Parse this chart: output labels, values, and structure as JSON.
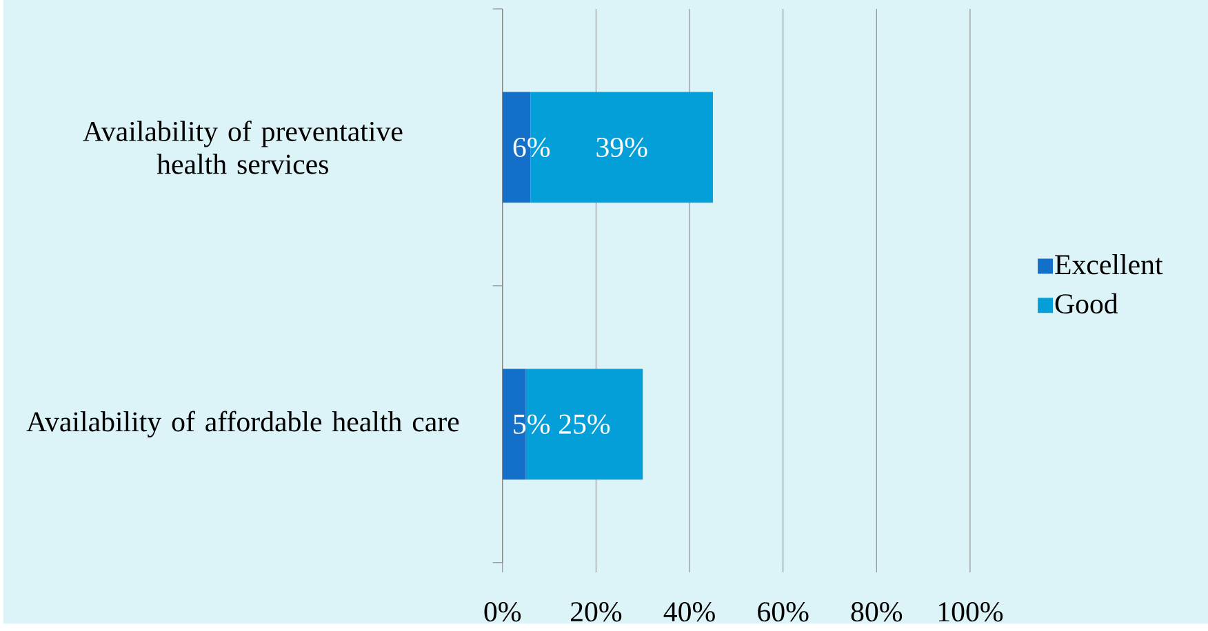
{
  "chart_data": {
    "type": "bar",
    "orientation": "horizontal",
    "stacked": true,
    "categories": [
      "Availability of preventative health services",
      "Availability of affordable health care"
    ],
    "series": [
      {
        "name": "Excellent",
        "color": "#136fc8",
        "values": [
          6,
          5
        ],
        "value_labels": [
          "6%",
          "5%"
        ]
      },
      {
        "name": "Good",
        "color": "#049fd8",
        "values": [
          39,
          25
        ],
        "value_labels": [
          "39%",
          "25%"
        ]
      }
    ],
    "xlim": [
      0,
      100
    ],
    "xticks": [
      {
        "value": 0,
        "label": "0%"
      },
      {
        "value": 20,
        "label": "20%"
      },
      {
        "value": 40,
        "label": "40%"
      },
      {
        "value": 60,
        "label": "60%"
      },
      {
        "value": 80,
        "label": "80%"
      },
      {
        "value": 100,
        "label": "100%"
      }
    ],
    "grid": "x",
    "legend": "right"
  }
}
